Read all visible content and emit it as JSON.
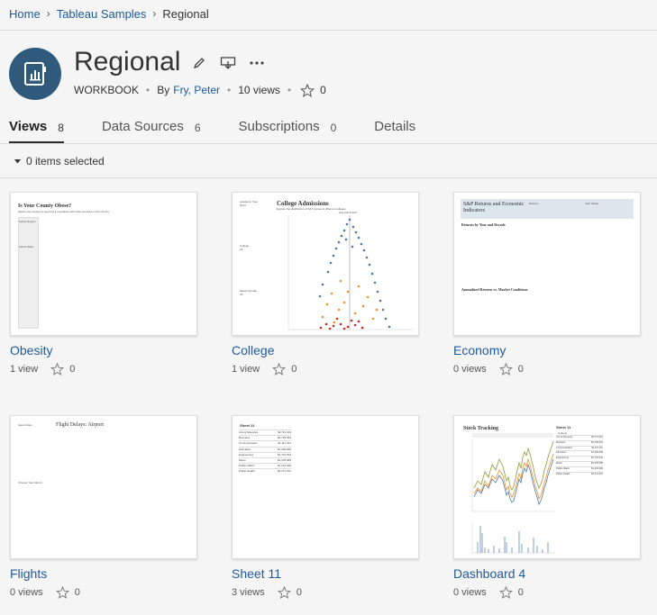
{
  "breadcrumb": {
    "home": "Home",
    "project": "Tableau Samples",
    "current": "Regional"
  },
  "workbook": {
    "title": "Regional",
    "type": "WORKBOOK",
    "by_label": "By",
    "owner": "Fry, Peter",
    "views_count": "10 views",
    "favorites": "0"
  },
  "tabs": [
    {
      "label": "Views",
      "count": "8"
    },
    {
      "label": "Data Sources",
      "count": "6"
    },
    {
      "label": "Subscriptions",
      "count": "0"
    },
    {
      "label": "Details",
      "count": ""
    }
  ],
  "selection": {
    "label": "0 items selected"
  },
  "views": [
    {
      "name": "Obesity",
      "views": "1 view",
      "favorites": "0",
      "thumb_title": "Is Your County Obese?",
      "thumb_sub": "Select your county to see how it compares with other counties in the country",
      "thumb_labels": [
        "Select Region",
        "Select State"
      ]
    },
    {
      "name": "College",
      "views": "1 view",
      "favorites": "0",
      "thumb_title": "College Admissions",
      "thumb_sub": "Explore the distribution of SAT scores in different colleges",
      "thumb_labels": [
        "Academic Year",
        "2014",
        "College",
        "All",
        "Select Gender",
        "All"
      ],
      "thumb_annot": "Avg Admit SAT"
    },
    {
      "name": "Economy",
      "views": "0 views",
      "favorites": "0",
      "thumb_title": "S&P Returns and Economic Indicators",
      "thumb_labels": [
        "Returns",
        "Year things"
      ],
      "thumb_sec1": "Returns by Year and Decade",
      "thumb_sec2": "Annualized Returns vs. Market Conditions"
    },
    {
      "name": "Flights",
      "views": "0 views",
      "favorites": "0",
      "thumb_title": "Flight Delays: Airport",
      "thumb_labels": [
        "Select Date",
        "Choose Your Airport"
      ]
    },
    {
      "name": "Sheet 11",
      "views": "3 views",
      "favorites": "0",
      "thumb_title": "Sheet 11",
      "table_rows": [
        [
          "Arts & Sciences",
          "$2,711,019"
        ],
        [
          "Business",
          "$2,795,953"
        ],
        [
          "Communication",
          "$1,117,911"
        ],
        [
          "Education",
          "$1,300,000"
        ],
        [
          "Engineering",
          "$2,716,534"
        ],
        [
          "Music",
          "$2,378,086"
        ],
        [
          "Public Affairs",
          "$1,231,000"
        ],
        [
          "Public Health",
          "$2,371,397"
        ]
      ]
    },
    {
      "name": "Dashboard 4",
      "views": "0 views",
      "favorites": "0",
      "thumb_title": "Stock Tracking",
      "thumb_side_title": "Sheet 11",
      "thumb_side_head": "College",
      "table_rows": [
        [
          "Arts & Sciences",
          "$2,711,019"
        ],
        [
          "Business",
          "$2,795,953"
        ],
        [
          "Communication",
          "$1,117,911"
        ],
        [
          "Education",
          "$1,300,000"
        ],
        [
          "Engineering",
          "$2,716,534"
        ],
        [
          "Music",
          "$2,378,086"
        ],
        [
          "Public Affairs",
          "$1,231,000"
        ],
        [
          "Public Health",
          "$2,371,397"
        ]
      ]
    }
  ],
  "colors": {
    "link": "#1f5a9a",
    "avatar": "#2f5a7b",
    "accent_blue": "#4e79a7",
    "accent_orange": "#f28e2b",
    "accent_red": "#d62728",
    "accent_olive": "#8c9a3b"
  }
}
